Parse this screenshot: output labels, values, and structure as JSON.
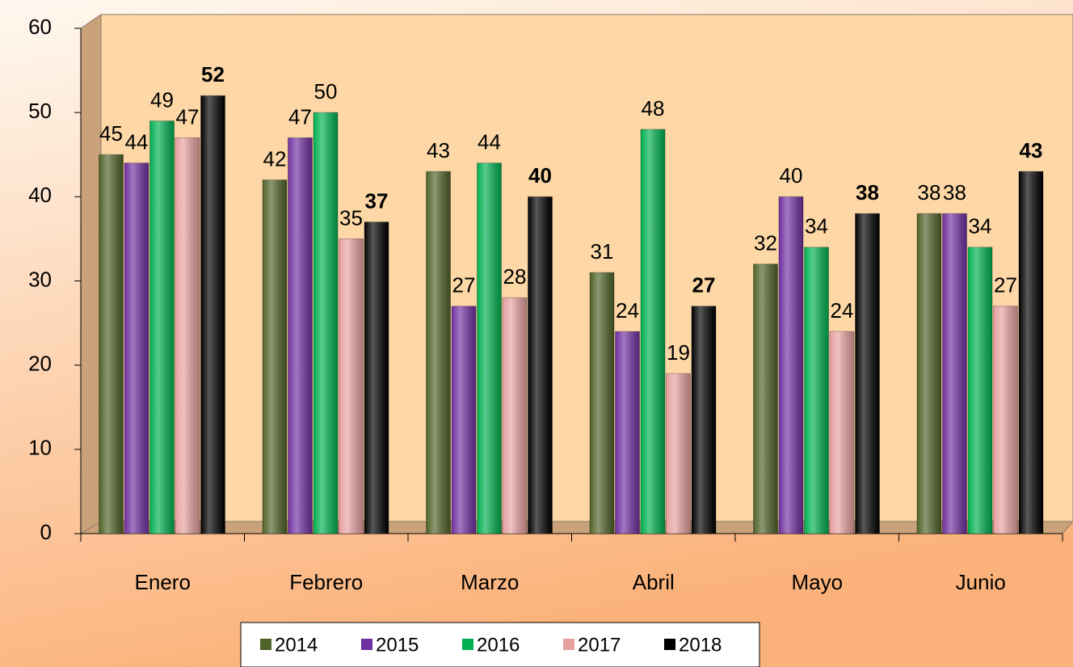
{
  "chart_data": {
    "type": "bar",
    "categories": [
      "Enero",
      "Febrero",
      "Marzo",
      "Abril",
      "Mayo",
      "Junio"
    ],
    "series": [
      {
        "name": "2014",
        "color": "#4f6228",
        "values": [
          45,
          42,
          43,
          31,
          32,
          38
        ]
      },
      {
        "name": "2015",
        "color": "#7030a0",
        "values": [
          44,
          47,
          27,
          24,
          40,
          38
        ]
      },
      {
        "name": "2016",
        "color": "#00b050",
        "values": [
          49,
          50,
          44,
          48,
          34,
          34
        ]
      },
      {
        "name": "2017",
        "color": "#e6a0a0",
        "values": [
          47,
          35,
          28,
          19,
          24,
          27
        ]
      },
      {
        "name": "2018",
        "color": "#000000",
        "values": [
          52,
          37,
          40,
          27,
          38,
          43
        ],
        "bold": true
      }
    ],
    "ylim": [
      0,
      60
    ],
    "yticks": [
      0,
      10,
      20,
      30,
      40,
      50,
      60
    ],
    "legend": "bottom"
  }
}
